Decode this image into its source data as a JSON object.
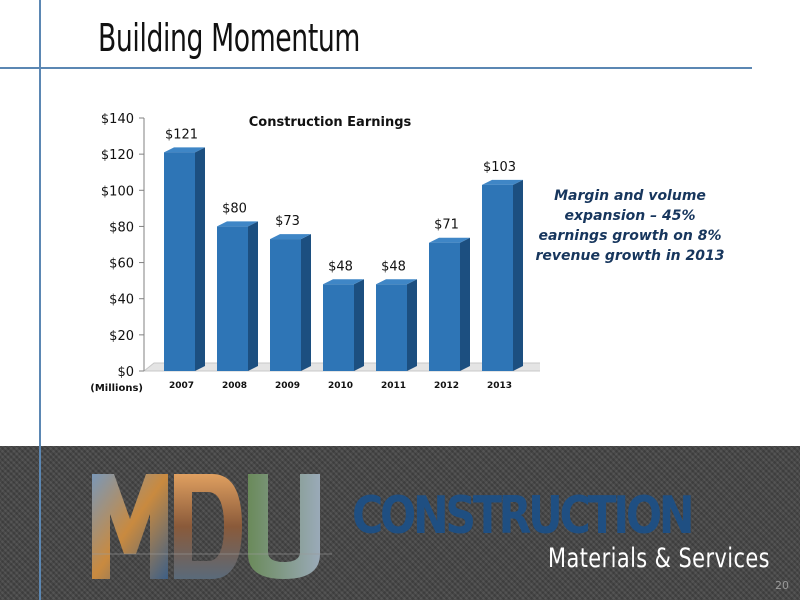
{
  "slide": {
    "title": "Building Momentum",
    "page_number": "20",
    "annotation": "Margin and volume expansion – 45% earnings growth on 8% revenue growth in 2013"
  },
  "branding": {
    "logo_letters": "MDU",
    "company_word": "CONSTRUCTION",
    "tagline": "Materials & Services"
  },
  "colors": {
    "bar_front": "#2e75b6",
    "bar_side": "#1c4f80",
    "bar_top": "#3f86c6",
    "accent_line": "#5b87b3",
    "brand_blue": "#1f4f82"
  },
  "chart_data": {
    "type": "bar",
    "title": "Construction Earnings",
    "unit_label": "(Millions)",
    "categories": [
      "2007",
      "2008",
      "2009",
      "2010",
      "2011",
      "2012",
      "2013"
    ],
    "values": [
      121,
      80,
      73,
      48,
      48,
      71,
      103
    ],
    "value_labels": [
      "$121",
      "$80",
      "$73",
      "$48",
      "$48",
      "$71",
      "$103"
    ],
    "y_ticks": [
      0,
      20,
      40,
      60,
      80,
      100,
      120,
      140
    ],
    "y_tick_labels": [
      "$0",
      "$20",
      "$40",
      "$60",
      "$80",
      "$100",
      "$120",
      "$140"
    ],
    "ylim": [
      0,
      140
    ],
    "grid": false,
    "legend": "none",
    "style": "3d"
  }
}
